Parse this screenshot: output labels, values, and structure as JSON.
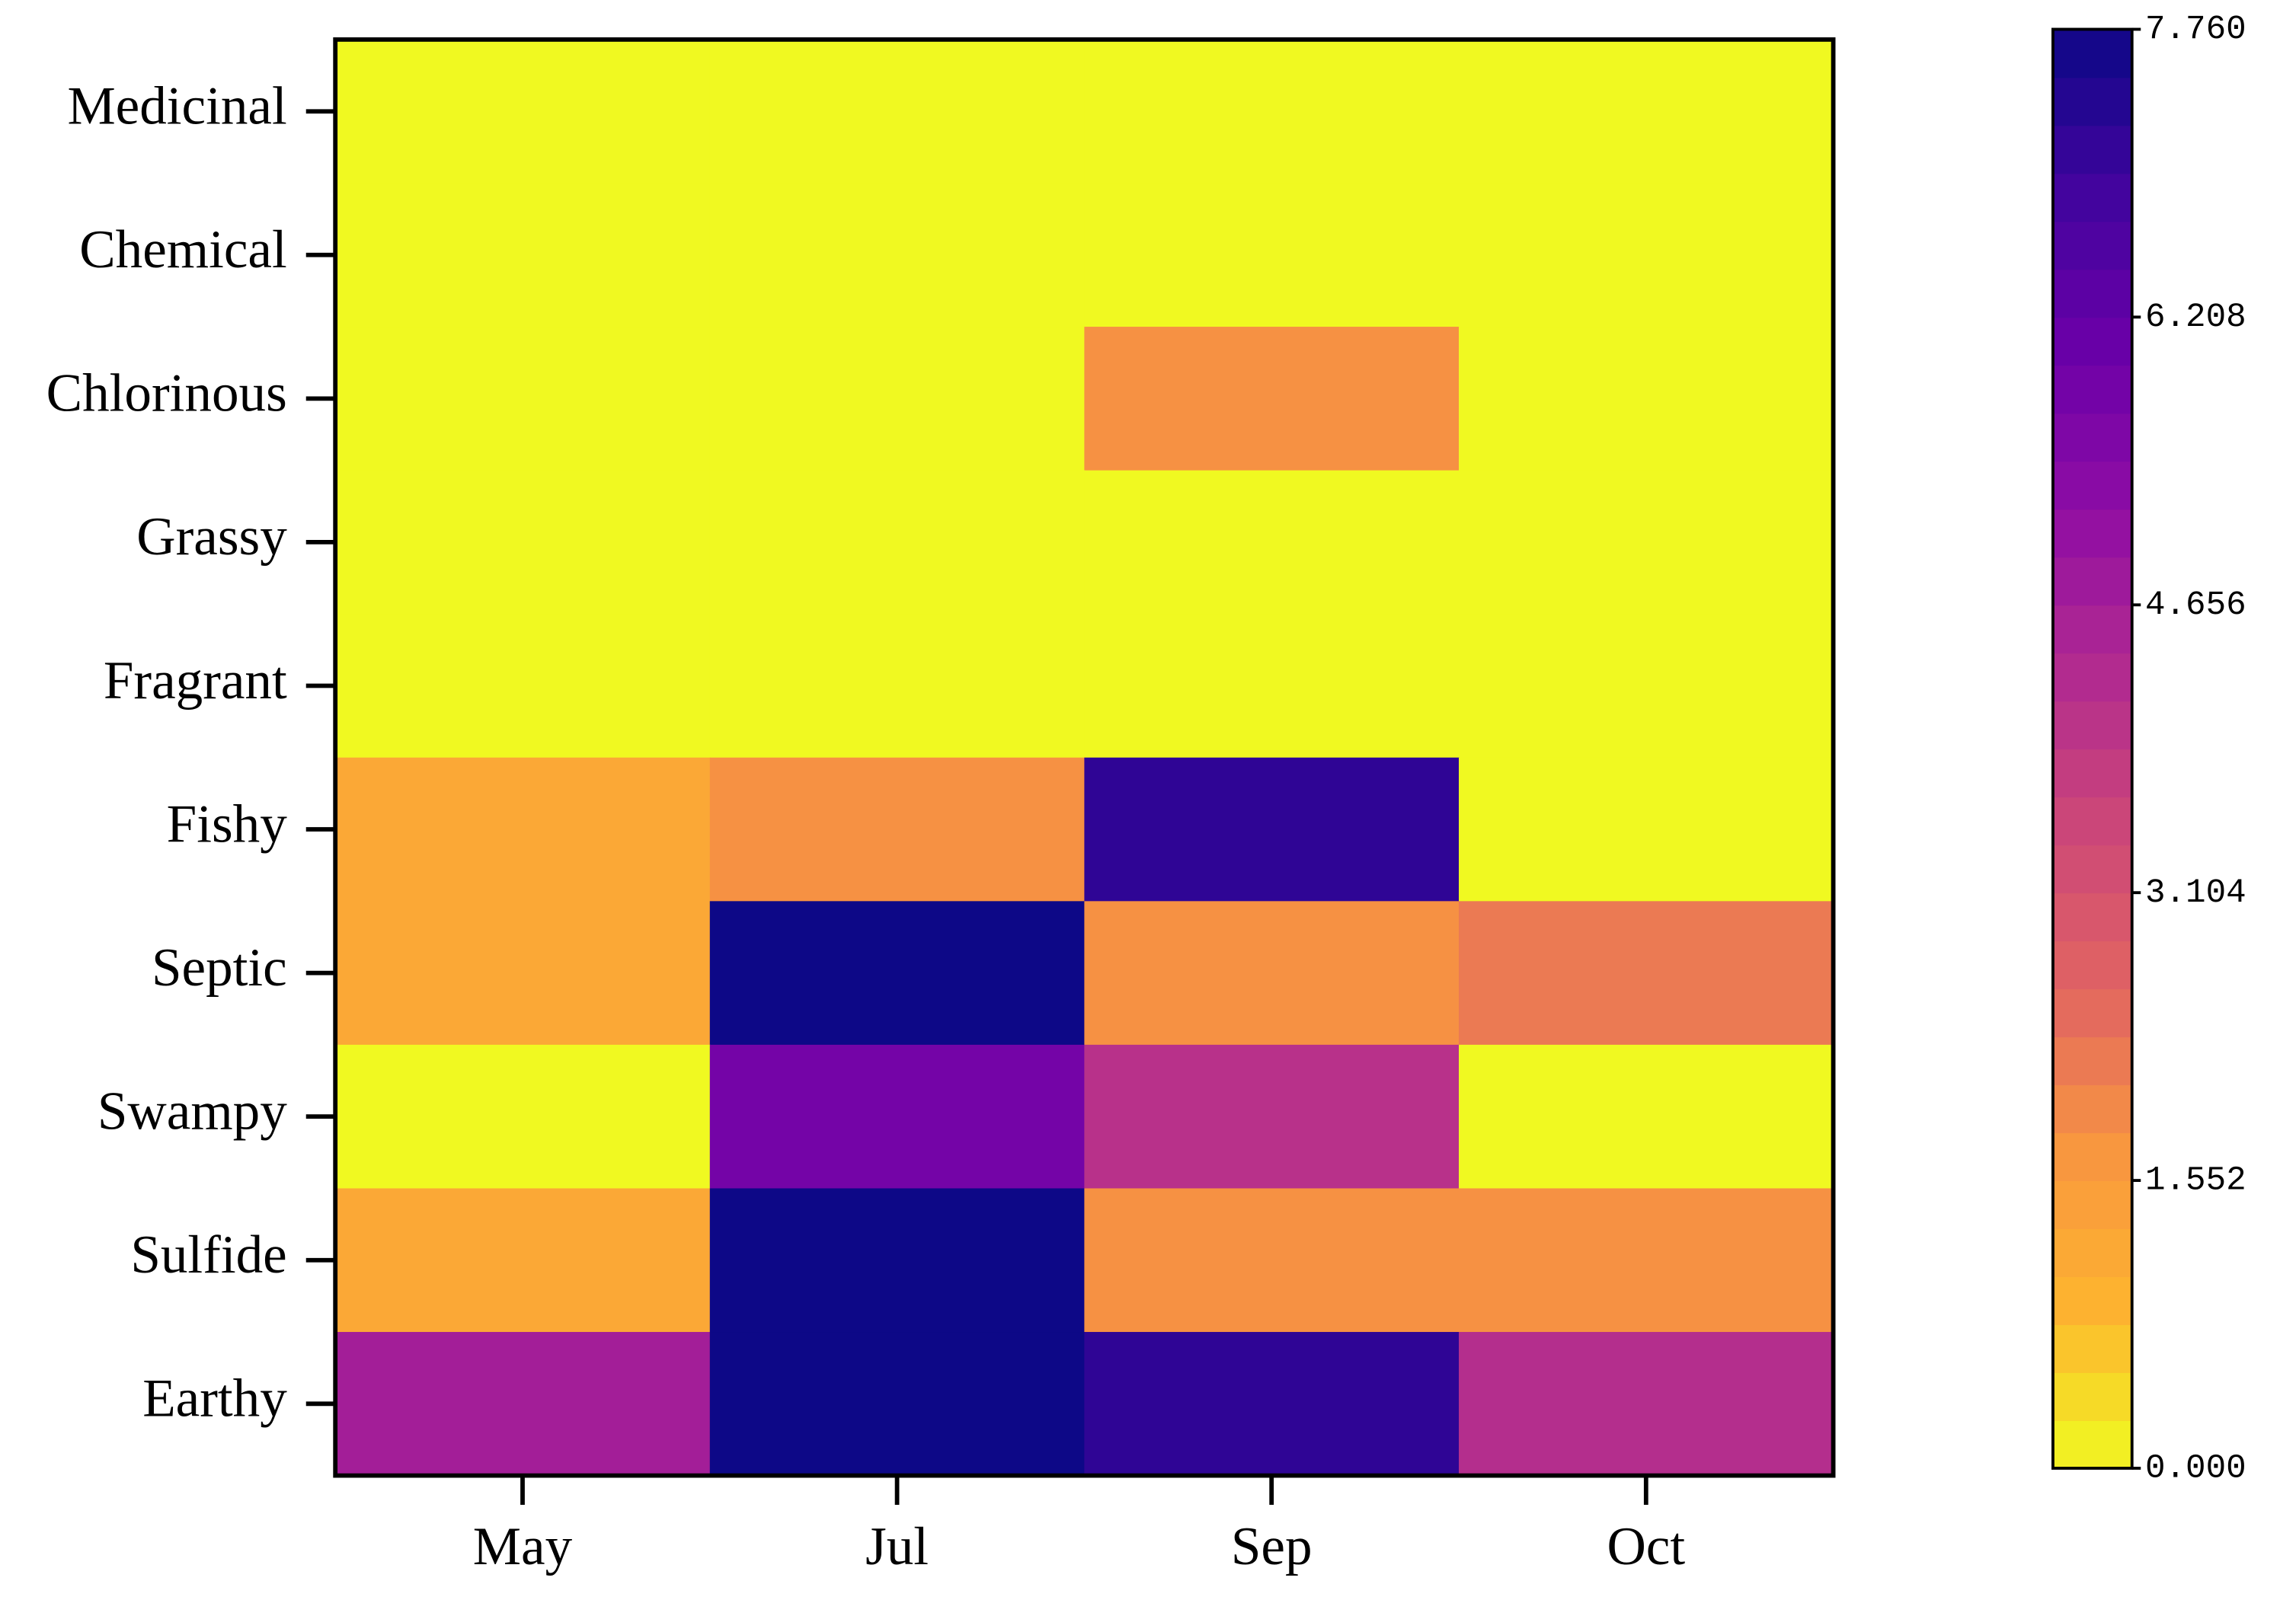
{
  "chart_data": {
    "type": "heatmap",
    "x_categories": [
      "May",
      "Jul",
      "Sep",
      "Oct"
    ],
    "y_categories": [
      "Medicinal",
      "Chemical",
      "Chlorinous",
      "Grassy",
      "Fragrant",
      "Fishy",
      "Septic",
      "Swampy",
      "Sulfide",
      "Earthy"
    ],
    "values": [
      [
        0,
        0,
        0,
        0
      ],
      [
        0,
        0,
        0,
        0
      ],
      [
        0,
        0,
        1.8,
        0
      ],
      [
        0,
        0,
        0,
        0
      ],
      [
        0,
        0,
        0,
        0
      ],
      [
        1.2,
        1.8,
        7.2,
        0
      ],
      [
        1.2,
        7.76,
        1.8,
        2.2
      ],
      [
        0,
        5.8,
        4.1,
        0
      ],
      [
        1.2,
        7.76,
        1.8,
        1.8
      ],
      [
        4.66,
        7.76,
        7.2,
        4.2
      ]
    ],
    "colorbar_lim": [
      0,
      7.76
    ],
    "colorbar_ticks": [
      {
        "value": 0,
        "label": "0.000"
      },
      {
        "value": 1.552,
        "label": "1.552"
      },
      {
        "value": 3.104,
        "label": "3.104"
      },
      {
        "value": 4.656,
        "label": "4.656"
      },
      {
        "value": 6.208,
        "label": "6.208"
      },
      {
        "value": 7.76,
        "label": "7.760"
      }
    ],
    "colormap": [
      "#f0f921",
      "#fdb42f",
      "#f89540",
      "#e16462",
      "#cc4778",
      "#b12a90",
      "#8f0da4",
      "#6a00a8",
      "#41049d",
      "#0d0887"
    ]
  }
}
